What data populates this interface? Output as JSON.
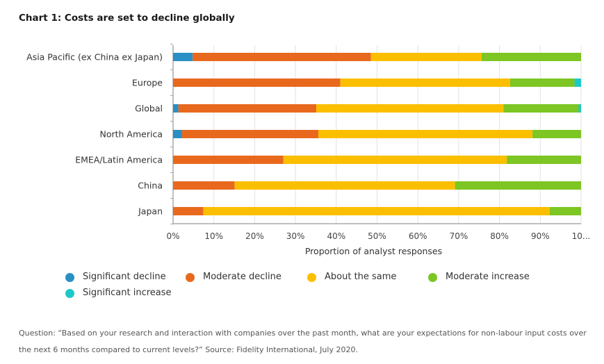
{
  "chart_data": {
    "type": "bar",
    "orientation": "horizontal",
    "stacked": true,
    "title": "Chart 1: Costs are set to decline globally",
    "xlabel": "Proportion of analyst responses",
    "ylabel": "",
    "xlim": [
      0,
      100
    ],
    "xticks": [
      "0%",
      "10%",
      "20%",
      "30%",
      "40%",
      "50%",
      "60%",
      "70%",
      "80%",
      "90%",
      "10..."
    ],
    "grid": true,
    "legend_position": "bottom",
    "categories": [
      "Asia Pacific (ex China ex Japan)",
      "Europe",
      "Global",
      "North America",
      "EMEA/Latin America",
      "China",
      "Japan"
    ],
    "series": [
      {
        "name": "Significant decline",
        "color": "#2a8fc4",
        "values": [
          4.8,
          0,
          1.3,
          2.2,
          0,
          0,
          0
        ]
      },
      {
        "name": "Moderate decline",
        "color": "#e8691e",
        "values": [
          43.7,
          41.0,
          33.8,
          33.4,
          27.0,
          15.1,
          7.4
        ]
      },
      {
        "name": "About the same",
        "color": "#fbbf00",
        "values": [
          27.1,
          41.6,
          45.9,
          52.5,
          54.8,
          54.0,
          84.9
        ]
      },
      {
        "name": "Moderate increase",
        "color": "#7dc623",
        "values": [
          24.4,
          15.8,
          18.4,
          11.9,
          18.2,
          30.9,
          7.7
        ]
      },
      {
        "name": "Significant increase",
        "color": "#1ec8c8",
        "values": [
          0,
          1.6,
          0.6,
          0,
          0,
          0,
          0
        ]
      }
    ]
  },
  "footnote": "Question: “Based on your research and interaction with companies over the past month, what are your expectations for non-labour input costs over the next 6 months compared to current levels?” Source: Fidelity International, July 2020."
}
